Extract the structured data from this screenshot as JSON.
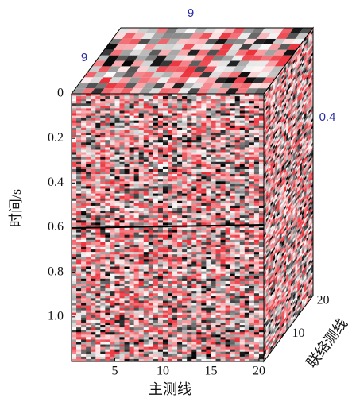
{
  "chart_data": {
    "type": "cube",
    "x_label": "主测线",
    "y_label": "时间/s",
    "z_label": "联络测线",
    "annotations": [
      "9",
      "9",
      "0.4"
    ],
    "xlim": [
      0.5,
      20.5
    ],
    "xticks": [
      5,
      10,
      15,
      20
    ],
    "ylim": [
      0,
      1.2
    ],
    "yticks": [
      0,
      0.2,
      0.4,
      0.6,
      0.8,
      {
        "value": 1,
        "label": "1.0"
      }
    ],
    "zlim": [
      0.5,
      20.5
    ],
    "zticks": [
      10,
      20
    ]
  }
}
